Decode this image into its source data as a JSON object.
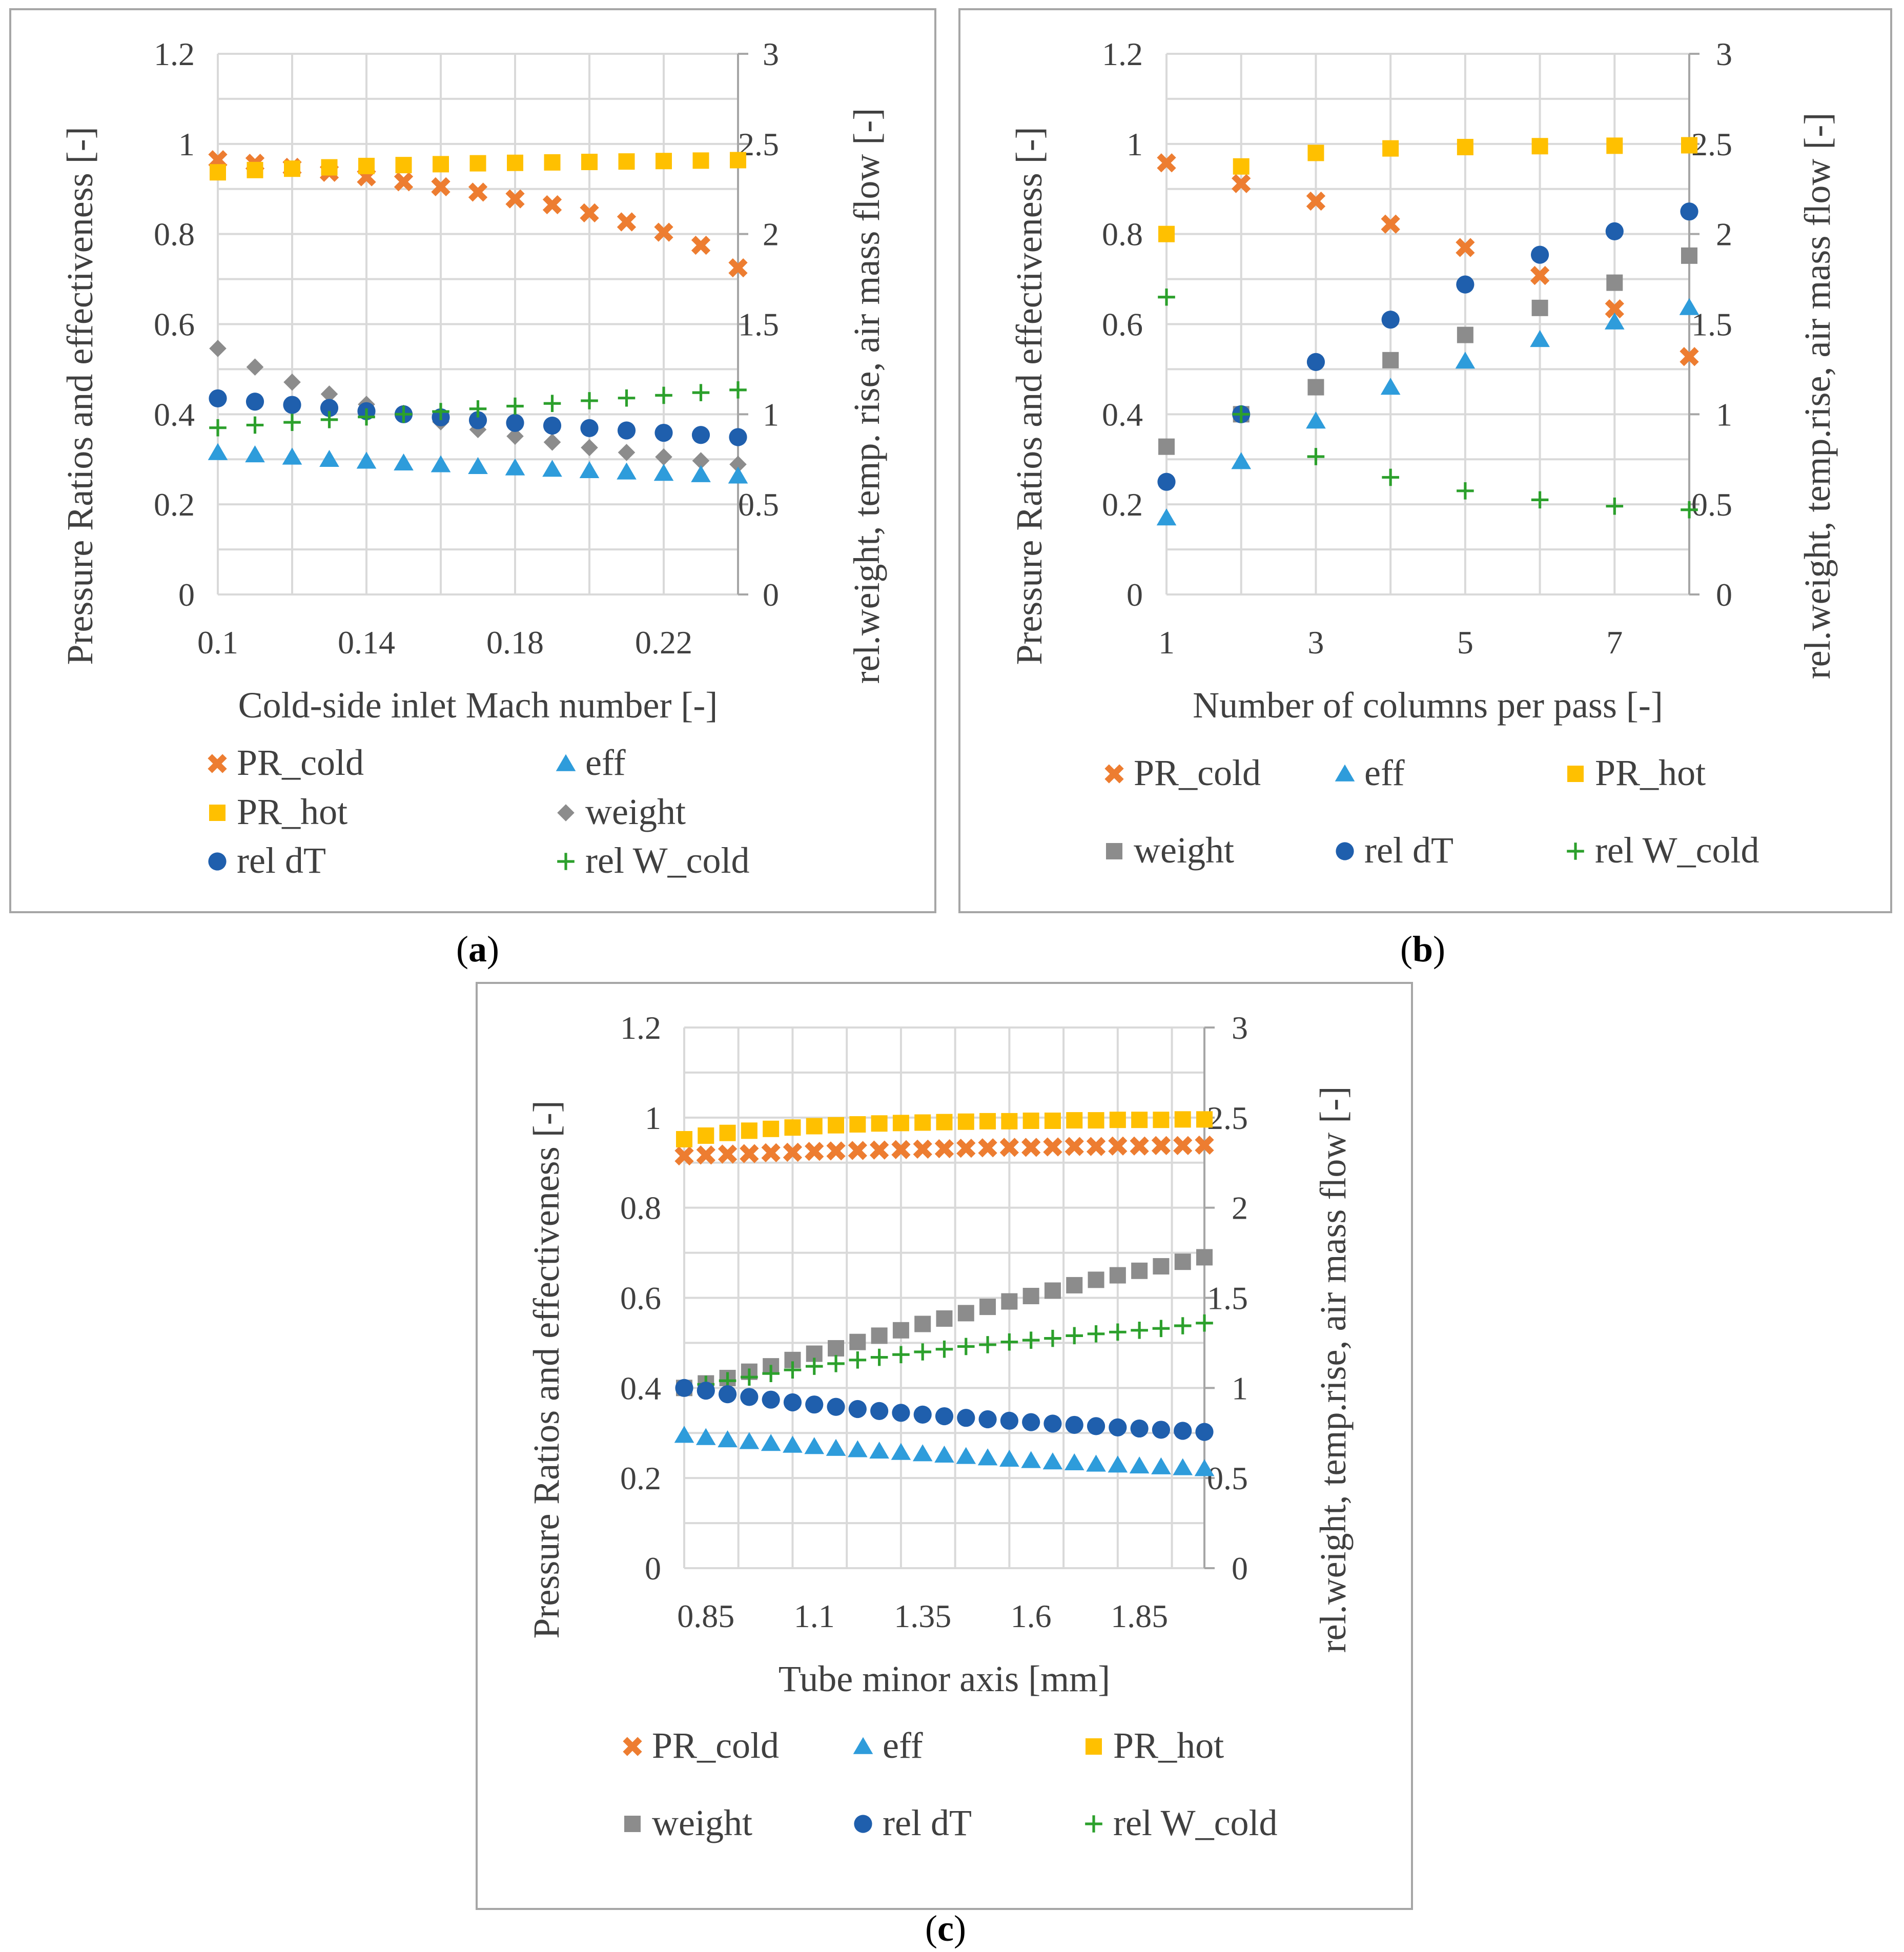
{
  "colors": {
    "PR_cold": "#ED7D31",
    "eff": "#2E9CDB",
    "PR_hot": "#FFC000",
    "weight": "#8C8C8C",
    "rel_dT": "#1F5FAD",
    "rel_W_cold": "#2CA02C",
    "gridline": "#D9D9D9",
    "axis_text": "#404040",
    "frame": "#A6A6A6"
  },
  "chart_data": [
    {
      "type": "scatter",
      "panel": "a",
      "caption": {
        "open": "(",
        "letter": "a",
        "close": ")"
      },
      "xlabel": "Cold-side inlet Mach number [-]",
      "ylabel": "Pressure Ratios and effectiveness [-]",
      "y2label": "rel.weight, temp. rise, air mass flow [-]",
      "xlim": [
        0.1,
        0.24
      ],
      "ylim": [
        0,
        1.2
      ],
      "y2lim": [
        0,
        3
      ],
      "x_ticks": [
        "0.1",
        "0.14",
        "0.18",
        "0.22"
      ],
      "x_tick_values": [
        0.1,
        0.14,
        0.18,
        0.22
      ],
      "x_grid_values": [
        0.1,
        0.12,
        0.14,
        0.16,
        0.18,
        0.2,
        0.22,
        0.24
      ],
      "y_ticks": [
        "0",
        "0.2",
        "0.4",
        "0.6",
        "0.8",
        "1",
        "1.2"
      ],
      "y2_ticks": [
        "0",
        "0.5",
        "1",
        "1.5",
        "2",
        "2.5",
        "3"
      ],
      "legend_columns": 2,
      "legend": [
        {
          "key": "PR_cold",
          "label": "PR_cold",
          "marker": "x"
        },
        {
          "key": "eff",
          "label": "eff",
          "marker": "triangle"
        },
        {
          "key": "PR_hot",
          "label": "PR_hot",
          "marker": "square"
        },
        {
          "key": "weight",
          "label": "weight",
          "marker": "diamond"
        },
        {
          "key": "rel_dT",
          "label": "rel dT",
          "marker": "circle"
        },
        {
          "key": "rel_W_cold",
          "label": "rel W_cold",
          "marker": "plus"
        }
      ],
      "x": [
        0.1,
        0.11,
        0.12,
        0.13,
        0.14,
        0.15,
        0.16,
        0.17,
        0.18,
        0.19,
        0.2,
        0.21,
        0.22,
        0.23,
        0.24
      ],
      "series": [
        {
          "key": "PR_cold",
          "name": "PR_cold",
          "axis": "left",
          "marker": "x",
          "values": [
            0.965,
            0.957,
            0.948,
            0.937,
            0.927,
            0.916,
            0.905,
            0.893,
            0.878,
            0.865,
            0.847,
            0.827,
            0.804,
            0.775,
            0.725
          ]
        },
        {
          "key": "PR_hot",
          "name": "PR_hot",
          "axis": "left",
          "marker": "square",
          "values": [
            0.937,
            0.942,
            0.945,
            0.948,
            0.951,
            0.953,
            0.955,
            0.957,
            0.958,
            0.959,
            0.96,
            0.961,
            0.962,
            0.963,
            0.964
          ]
        },
        {
          "key": "weight",
          "name": "weight",
          "axis": "right",
          "marker": "diamond",
          "values": [
            1.365,
            1.262,
            1.178,
            1.112,
            1.055,
            1.005,
            0.958,
            0.915,
            0.878,
            0.845,
            0.815,
            0.788,
            0.763,
            0.742,
            0.722
          ]
        },
        {
          "key": "rel_dT",
          "name": "rel dT",
          "axis": "right",
          "marker": "circle",
          "values": [
            1.088,
            1.07,
            1.052,
            1.035,
            1.017,
            1.0,
            0.983,
            0.967,
            0.952,
            0.937,
            0.923,
            0.91,
            0.897,
            0.885,
            0.873
          ]
        },
        {
          "key": "rel_W_cold",
          "name": "rel W_cold",
          "axis": "right",
          "marker": "plus",
          "values": [
            0.925,
            0.94,
            0.955,
            0.97,
            0.985,
            1.0,
            1.015,
            1.03,
            1.045,
            1.06,
            1.075,
            1.09,
            1.105,
            1.12,
            1.135
          ]
        },
        {
          "key": "eff",
          "name": "eff",
          "axis": "left",
          "marker": "triangle",
          "values": [
            0.315,
            0.31,
            0.305,
            0.3,
            0.296,
            0.292,
            0.288,
            0.284,
            0.281,
            0.278,
            0.275,
            0.272,
            0.269,
            0.266,
            0.263
          ]
        }
      ]
    },
    {
      "type": "scatter",
      "panel": "b",
      "caption": {
        "open": "(",
        "letter": "b",
        "close": ")"
      },
      "xlabel": "Number of columns per pass [-]",
      "ylabel": "Pressure Ratios and effectiveness [-]",
      "y2label": "rel.weight, temp.rise, air mass flow [-]",
      "xlim": [
        1,
        8
      ],
      "ylim": [
        0,
        1.2
      ],
      "y2lim": [
        0,
        3
      ],
      "x_ticks": [
        "1",
        "3",
        "5",
        "7"
      ],
      "x_tick_values": [
        1,
        3,
        5,
        7
      ],
      "x_grid_values": [
        1,
        2,
        3,
        4,
        5,
        6,
        7,
        8
      ],
      "y_ticks": [
        "0",
        "0.2",
        "0.4",
        "0.6",
        "0.8",
        "1",
        "1.2"
      ],
      "y2_ticks": [
        "0",
        "0.5",
        "1",
        "1.5",
        "2",
        "2.5",
        "3"
      ],
      "legend_columns": 3,
      "legend": [
        {
          "key": "PR_cold",
          "label": "PR_cold",
          "marker": "x"
        },
        {
          "key": "eff",
          "label": "eff",
          "marker": "triangle"
        },
        {
          "key": "PR_hot",
          "label": "PR_hot",
          "marker": "square"
        },
        {
          "key": "weight",
          "label": "weight",
          "marker": "square"
        },
        {
          "key": "rel_dT",
          "label": "rel dT",
          "marker": "circle"
        },
        {
          "key": "rel_W_cold",
          "label": "rel W_cold",
          "marker": "plus"
        }
      ],
      "x": [
        1,
        2,
        3,
        4,
        5,
        6,
        7,
        8
      ],
      "series": [
        {
          "key": "PR_cold",
          "name": "PR_cold",
          "axis": "left",
          "marker": "x",
          "values": [
            0.958,
            0.912,
            0.873,
            0.822,
            0.77,
            0.708,
            0.634,
            0.528
          ]
        },
        {
          "key": "PR_hot",
          "name": "PR_hot",
          "axis": "left",
          "marker": "square",
          "values": [
            0.8,
            0.95,
            0.98,
            0.99,
            0.993,
            0.995,
            0.996,
            0.997
          ]
        },
        {
          "key": "weight",
          "name": "weight",
          "axis": "right",
          "marker": "square",
          "values": [
            0.82,
            1.0,
            1.15,
            1.3,
            1.44,
            1.59,
            1.73,
            1.88
          ]
        },
        {
          "key": "rel_dT",
          "name": "rel dT",
          "axis": "right",
          "marker": "circle",
          "values": [
            0.625,
            1.0,
            1.29,
            1.525,
            1.72,
            1.885,
            2.015,
            2.125
          ]
        },
        {
          "key": "rel_W_cold",
          "name": "rel W_cold",
          "axis": "right",
          "marker": "plus",
          "values": [
            1.65,
            1.0,
            0.765,
            0.65,
            0.575,
            0.525,
            0.49,
            0.47
          ]
        },
        {
          "key": "eff",
          "name": "eff",
          "axis": "left",
          "marker": "triangle",
          "values": [
            0.17,
            0.295,
            0.385,
            0.46,
            0.518,
            0.566,
            0.605,
            0.637
          ]
        }
      ]
    },
    {
      "type": "scatter",
      "panel": "c",
      "caption": {
        "open": "(",
        "letter": "c",
        "close": ")"
      },
      "xlabel": "Tube minor axis [mm]",
      "ylabel": "Pressure Ratios and effectiveness [-]",
      "y2label": "rel.weight, temp.rise, air mass flow [-]",
      "xlim": [
        0.8,
        2.0
      ],
      "ylim": [
        0,
        1.2
      ],
      "y2lim": [
        0,
        3
      ],
      "x_ticks": [
        "0.85",
        "1.1",
        "1.35",
        "1.6",
        "1.85"
      ],
      "x_tick_values": [
        0.85,
        1.1,
        1.35,
        1.6,
        1.85
      ],
      "x_grid_values": [
        0.8,
        0.925,
        1.05,
        1.175,
        1.3,
        1.425,
        1.55,
        1.675,
        1.8,
        1.925,
        2.0
      ],
      "y_ticks": [
        "0",
        "0.2",
        "0.4",
        "0.6",
        "0.8",
        "1",
        "1.2"
      ],
      "y2_ticks": [
        "0",
        "0.5",
        "1",
        "1.5",
        "2",
        "2.5",
        "3"
      ],
      "legend_columns": 3,
      "legend": [
        {
          "key": "PR_cold",
          "label": "PR_cold",
          "marker": "x"
        },
        {
          "key": "eff",
          "label": "eff",
          "marker": "triangle"
        },
        {
          "key": "PR_hot",
          "label": "PR_hot",
          "marker": "square"
        },
        {
          "key": "weight",
          "label": "weight",
          "marker": "square"
        },
        {
          "key": "rel_dT",
          "label": "rel dT",
          "marker": "circle"
        },
        {
          "key": "rel_W_cold",
          "label": "rel W_cold",
          "marker": "plus"
        }
      ],
      "x": [
        0.8,
        0.85,
        0.9,
        0.95,
        1.0,
        1.05,
        1.1,
        1.15,
        1.2,
        1.25,
        1.3,
        1.35,
        1.4,
        1.45,
        1.5,
        1.55,
        1.6,
        1.65,
        1.7,
        1.75,
        1.8,
        1.85,
        1.9,
        1.95,
        2.0
      ],
      "series": [
        {
          "key": "PR_cold",
          "name": "PR_cold",
          "axis": "left",
          "marker": "x",
          "values": [
            0.915,
            0.917,
            0.919,
            0.92,
            0.922,
            0.923,
            0.925,
            0.926,
            0.927,
            0.928,
            0.929,
            0.93,
            0.931,
            0.932,
            0.933,
            0.934,
            0.934,
            0.935,
            0.936,
            0.936,
            0.937,
            0.937,
            0.938,
            0.938,
            0.939
          ]
        },
        {
          "key": "PR_hot",
          "name": "PR_hot",
          "axis": "left",
          "marker": "square",
          "values": [
            0.952,
            0.96,
            0.966,
            0.971,
            0.975,
            0.978,
            0.981,
            0.983,
            0.985,
            0.987,
            0.988,
            0.989,
            0.99,
            0.991,
            0.992,
            0.992,
            0.993,
            0.993,
            0.994,
            0.994,
            0.995,
            0.995,
            0.995,
            0.996,
            0.996
          ]
        },
        {
          "key": "weight",
          "name": "weight",
          "axis": "right",
          "marker": "square",
          "values": [
            1.0,
            1.025,
            1.055,
            1.09,
            1.12,
            1.155,
            1.19,
            1.22,
            1.255,
            1.29,
            1.32,
            1.355,
            1.385,
            1.415,
            1.45,
            1.48,
            1.51,
            1.54,
            1.57,
            1.6,
            1.625,
            1.65,
            1.675,
            1.7,
            1.725
          ]
        },
        {
          "key": "rel_W_cold",
          "name": "rel W_cold",
          "axis": "right",
          "marker": "plus",
          "values": [
            1.0,
            1.02,
            1.04,
            1.06,
            1.08,
            1.1,
            1.12,
            1.135,
            1.155,
            1.17,
            1.185,
            1.2,
            1.215,
            1.23,
            1.24,
            1.255,
            1.265,
            1.275,
            1.29,
            1.3,
            1.31,
            1.32,
            1.33,
            1.345,
            1.36
          ]
        },
        {
          "key": "rel_dT",
          "name": "rel dT",
          "axis": "right",
          "marker": "circle",
          "values": [
            1.0,
            0.985,
            0.965,
            0.95,
            0.935,
            0.92,
            0.908,
            0.895,
            0.883,
            0.872,
            0.862,
            0.852,
            0.843,
            0.834,
            0.826,
            0.818,
            0.81,
            0.802,
            0.795,
            0.788,
            0.781,
            0.775,
            0.768,
            0.762,
            0.756
          ]
        },
        {
          "key": "eff",
          "name": "eff",
          "axis": "left",
          "marker": "triangle",
          "values": [
            0.295,
            0.29,
            0.285,
            0.281,
            0.277,
            0.273,
            0.27,
            0.266,
            0.263,
            0.26,
            0.257,
            0.254,
            0.251,
            0.248,
            0.245,
            0.242,
            0.239,
            0.236,
            0.234,
            0.231,
            0.229,
            0.227,
            0.225,
            0.223,
            0.221
          ]
        }
      ]
    }
  ]
}
